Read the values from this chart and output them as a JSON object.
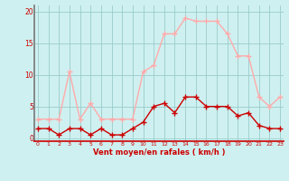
{
  "x": [
    0,
    1,
    2,
    3,
    4,
    5,
    6,
    7,
    8,
    9,
    10,
    11,
    12,
    13,
    14,
    15,
    16,
    17,
    18,
    19,
    20,
    21,
    22,
    23
  ],
  "y_moyen": [
    1.5,
    1.5,
    0.5,
    1.5,
    1.5,
    0.5,
    1.5,
    0.5,
    0.5,
    1.5,
    2.5,
    5.0,
    5.5,
    4.0,
    6.5,
    6.5,
    5.0,
    5.0,
    5.0,
    3.5,
    4.0,
    2.0,
    1.5,
    1.5
  ],
  "y_rafales": [
    3.0,
    3.0,
    3.0,
    10.5,
    3.0,
    5.5,
    3.0,
    3.0,
    3.0,
    3.0,
    10.5,
    11.5,
    16.5,
    16.5,
    19.0,
    18.5,
    18.5,
    18.5,
    16.5,
    13.0,
    13.0,
    6.5,
    5.0,
    6.5
  ],
  "color_moyen": "#cc0000",
  "color_rafales": "#ffaaaa",
  "bg_color": "#cff0f0",
  "grid_color": "#99cccc",
  "xlabel": "Vent moyen/en rafales ( km/h )",
  "xlabel_color": "#cc0000",
  "tick_color": "#cc0000",
  "yticks": [
    0,
    5,
    10,
    15,
    20
  ],
  "xticks": [
    0,
    1,
    2,
    3,
    4,
    5,
    6,
    7,
    8,
    9,
    10,
    11,
    12,
    13,
    14,
    15,
    16,
    17,
    18,
    19,
    20,
    21,
    22,
    23
  ],
  "ylim": [
    -0.5,
    21
  ],
  "xlim": [
    -0.3,
    23.3
  ],
  "markersize": 2.5,
  "linewidth": 1.0
}
